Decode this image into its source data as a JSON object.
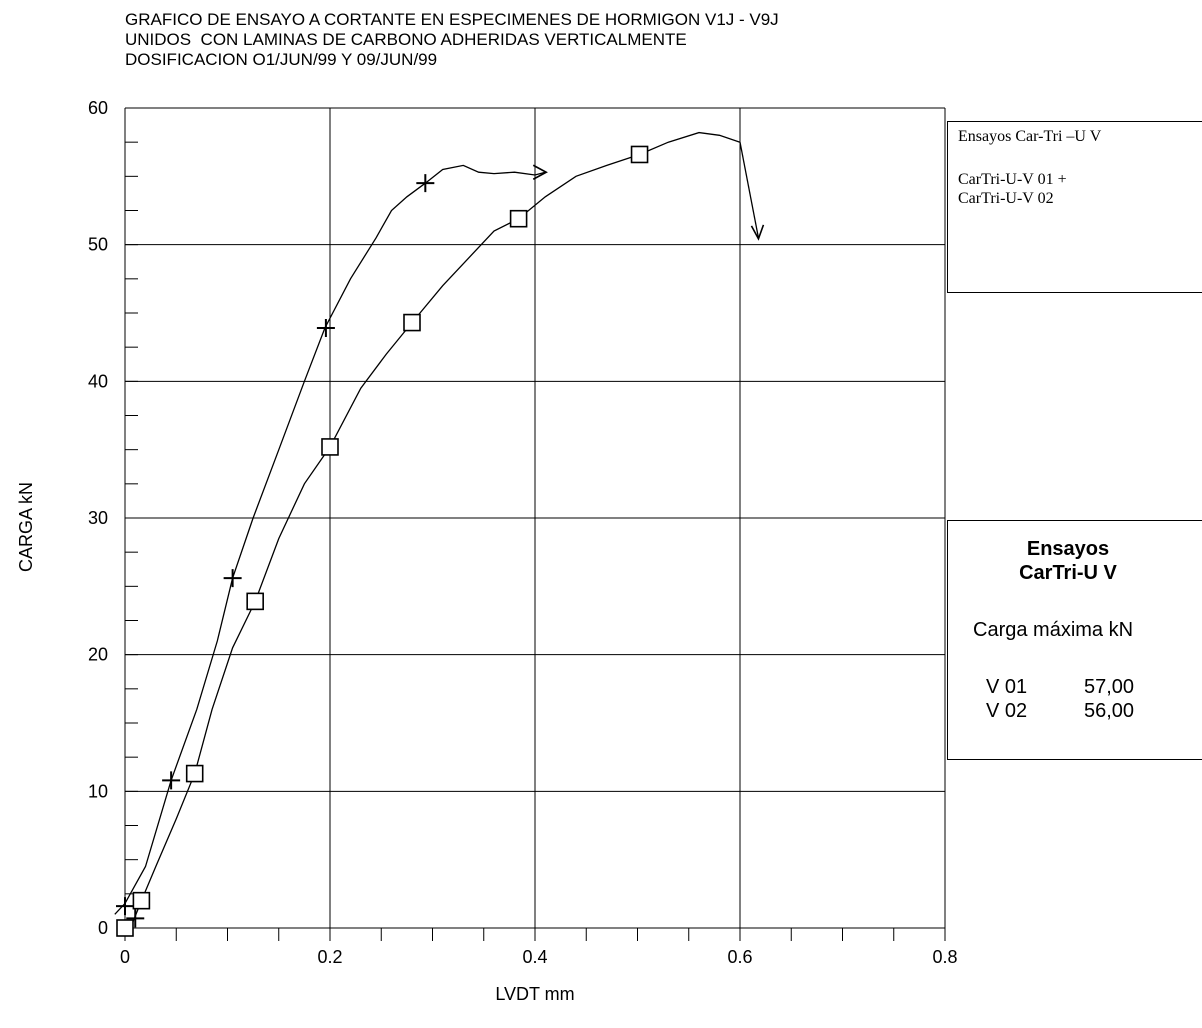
{
  "title_lines": [
    "GRAFICO DE ENSAYO A CORTANTE EN ESPECIMENES DE HORMIGON V1J - V9J",
    "UNIDOS  CON LAMINAS DE CARBONO ADHERIDAS VERTICALMENTE",
    "DOSIFICACION O1/JUN/99 Y 09/JUN/99"
  ],
  "legend_top": {
    "heading": "Ensayos Car-Tri –U V",
    "entries": [
      "CarTri-U-V  01 +",
      "CarTri-U-V  02"
    ]
  },
  "legend_summary": {
    "title1": "Ensayos",
    "title2": "CarTri-U V",
    "subtitle": "Carga máxima kN",
    "rows": [
      {
        "label": "V 01",
        "value": "57,00"
      },
      {
        "label": "V 02",
        "value": "56,00"
      }
    ]
  },
  "chart_data": {
    "type": "line",
    "xlabel": "LVDT  mm",
    "ylabel": "CARGA  kN",
    "xlim": [
      0,
      0.8
    ],
    "ylim": [
      0,
      60
    ],
    "xticks": [
      "0",
      "0.2",
      "0.4",
      "0.6",
      "0.8"
    ],
    "yticks": [
      "0",
      "10",
      "20",
      "30",
      "40",
      "50",
      "60"
    ],
    "grid": true,
    "colors": {
      "line": "#000000",
      "grid": "#000000"
    },
    "series": [
      {
        "name": "CarTri-U-V  01",
        "marker": "plus",
        "points": [
          [
            -0.01,
            1.0
          ],
          [
            0,
            1.8
          ],
          [
            0.02,
            4.5
          ],
          [
            0.045,
            10.8
          ],
          [
            0.07,
            16
          ],
          [
            0.09,
            21
          ],
          [
            0.105,
            25.6
          ],
          [
            0.125,
            30
          ],
          [
            0.15,
            35
          ],
          [
            0.175,
            40
          ],
          [
            0.195,
            43.9
          ],
          [
            0.22,
            47.5
          ],
          [
            0.245,
            50.5
          ],
          [
            0.26,
            52.5
          ],
          [
            0.275,
            53.5
          ],
          [
            0.293,
            54.5
          ],
          [
            0.31,
            55.5
          ],
          [
            0.33,
            55.8
          ],
          [
            0.345,
            55.3
          ],
          [
            0.36,
            55.2
          ],
          [
            0.38,
            55.3
          ],
          [
            0.4,
            55.1
          ],
          [
            0.41,
            55.3
          ]
        ],
        "marker_points": [
          [
            0,
            1.6
          ],
          [
            0.045,
            10.8
          ],
          [
            0.105,
            25.6
          ],
          [
            0.196,
            43.9
          ],
          [
            0.293,
            54.5
          ],
          [
            0.01,
            0.7
          ]
        ],
        "end_arrow": "right"
      },
      {
        "name": "CarTri-U-V  02",
        "marker": "square",
        "points": [
          [
            0,
            0
          ],
          [
            0.008,
            0.5
          ],
          [
            0.016,
            2.0
          ],
          [
            0.03,
            4.5
          ],
          [
            0.05,
            8
          ],
          [
            0.068,
            11.3
          ],
          [
            0.085,
            16
          ],
          [
            0.105,
            20.5
          ],
          [
            0.127,
            23.9
          ],
          [
            0.15,
            28.5
          ],
          [
            0.175,
            32.5
          ],
          [
            0.2,
            35.2
          ],
          [
            0.23,
            39.5
          ],
          [
            0.255,
            42
          ],
          [
            0.28,
            44.3
          ],
          [
            0.31,
            47
          ],
          [
            0.335,
            49
          ],
          [
            0.36,
            51
          ],
          [
            0.384,
            51.9
          ],
          [
            0.41,
            53.5
          ],
          [
            0.44,
            55
          ],
          [
            0.47,
            55.8
          ],
          [
            0.502,
            56.6
          ],
          [
            0.53,
            57.5
          ],
          [
            0.56,
            58.2
          ],
          [
            0.58,
            58.0
          ],
          [
            0.6,
            57.5
          ]
        ],
        "marker_points": [
          [
            0,
            0
          ],
          [
            0.016,
            2.0
          ],
          [
            0.068,
            11.3
          ],
          [
            0.127,
            23.9
          ],
          [
            0.2,
            35.2
          ],
          [
            0.28,
            44.3
          ],
          [
            0.384,
            51.9
          ],
          [
            0.502,
            56.6
          ]
        ],
        "end_arrow": "down",
        "end_point": [
          0.618,
          50.5
        ]
      }
    ]
  }
}
